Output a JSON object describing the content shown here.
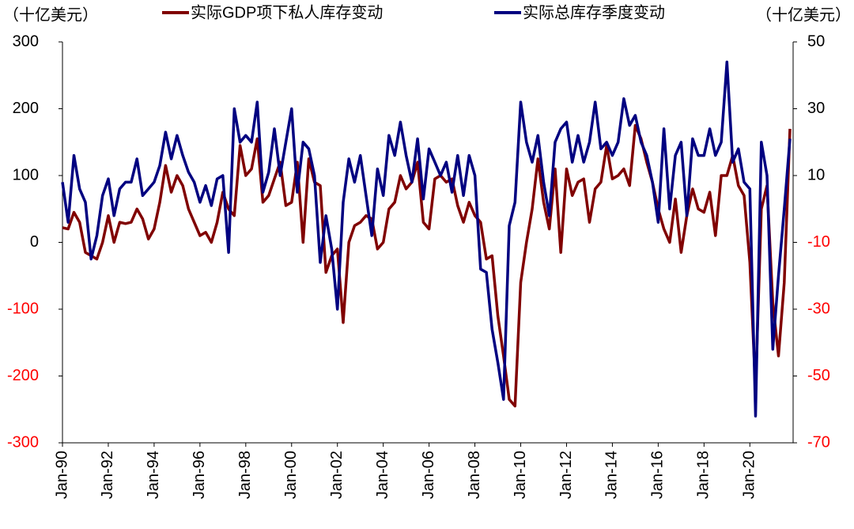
{
  "chart_data": {
    "type": "line",
    "y_label": "（十亿美元）",
    "y2_label": "（十亿美元）",
    "categories": [
      "Jan-90",
      null,
      null,
      null,
      null,
      null,
      null,
      null,
      "Jan-92",
      null,
      null,
      null,
      null,
      null,
      null,
      null,
      "Jan-94",
      null,
      null,
      null,
      null,
      null,
      null,
      null,
      "Jan-96",
      null,
      null,
      null,
      null,
      null,
      null,
      null,
      "Jan-98",
      null,
      null,
      null,
      null,
      null,
      null,
      null,
      "Jan-00",
      null,
      null,
      null,
      null,
      null,
      null,
      null,
      "Jan-02",
      null,
      null,
      null,
      null,
      null,
      null,
      null,
      "Jan-04",
      null,
      null,
      null,
      null,
      null,
      null,
      null,
      "Jan-06",
      null,
      null,
      null,
      null,
      null,
      null,
      null,
      "Jan-08",
      null,
      null,
      null,
      null,
      null,
      null,
      null,
      "Jan-10",
      null,
      null,
      null,
      null,
      null,
      null,
      null,
      "Jan-12",
      null,
      null,
      null,
      null,
      null,
      null,
      null,
      "Jan-14",
      null,
      null,
      null,
      null,
      null,
      null,
      null,
      "Jan-16",
      null,
      null,
      null,
      null,
      null,
      null,
      null,
      "Jan-18",
      null,
      null,
      null,
      null,
      null,
      null,
      null,
      "Jan-20",
      null,
      null,
      null,
      null,
      null,
      null,
      null
    ],
    "series": [
      {
        "name": "实际GDP项下私人库存变动",
        "color": "#800000",
        "axis": "y",
        "values": [
          22,
          20,
          45,
          30,
          -15,
          -20,
          -25,
          0,
          40,
          0,
          30,
          28,
          30,
          50,
          35,
          5,
          20,
          60,
          115,
          75,
          100,
          85,
          50,
          30,
          10,
          15,
          0,
          30,
          75,
          50,
          40,
          145,
          100,
          110,
          155,
          60,
          70,
          95,
          120,
          55,
          60,
          120,
          0,
          125,
          90,
          85,
          -45,
          -20,
          -10,
          -120,
          0,
          25,
          30,
          40,
          35,
          -10,
          0,
          50,
          60,
          100,
          80,
          90,
          120,
          30,
          20,
          95,
          100,
          90,
          95,
          55,
          30,
          60,
          40,
          30,
          -25,
          -20,
          -110,
          -170,
          -235,
          -245,
          -60,
          0,
          50,
          125,
          60,
          20,
          110,
          -15,
          110,
          70,
          90,
          95,
          30,
          80,
          90,
          145,
          95,
          100,
          110,
          85,
          175,
          155,
          120,
          90,
          50,
          20,
          0,
          65,
          -15,
          40,
          80,
          50,
          45,
          75,
          10,
          100,
          100,
          130,
          85,
          70,
          -30,
          -220,
          50,
          85,
          -90,
          -170,
          -60,
          170
        ]
      },
      {
        "name": "实际总库存季度变动",
        "color": "#000080",
        "axis": "y2",
        "values": [
          8,
          -4,
          16,
          6,
          2,
          -15,
          -8,
          4,
          9,
          -2,
          6,
          8,
          8,
          15,
          4,
          6,
          8,
          13,
          23,
          15,
          22,
          16,
          11,
          8,
          2,
          7,
          1,
          9,
          10,
          -13,
          30,
          20,
          22,
          20,
          32,
          5,
          11,
          24,
          10,
          20,
          30,
          5,
          20,
          18,
          10,
          -16,
          -2,
          -12,
          -30,
          2,
          15,
          8,
          16,
          4,
          -8,
          12,
          4,
          22,
          16,
          26,
          16,
          8,
          21,
          3,
          18,
          14,
          10,
          14,
          5,
          16,
          4,
          16,
          10,
          -18,
          -19,
          -36,
          -46,
          -57,
          -5,
          2,
          32,
          20,
          14,
          22,
          8,
          -2,
          20,
          24,
          26,
          14,
          22,
          14,
          20,
          32,
          18,
          20,
          16,
          20,
          33,
          25,
          28,
          20,
          16,
          8,
          -4,
          24,
          0,
          16,
          20,
          -2,
          21,
          16,
          16,
          24,
          16,
          20,
          44,
          14,
          18,
          8,
          6,
          -62,
          20,
          10,
          -42,
          -20,
          0,
          21
        ]
      }
    ],
    "ylim": [
      -300,
      300
    ],
    "yticks": [
      300,
      200,
      100,
      0,
      -100,
      -200,
      -300
    ],
    "y2lim": [
      -70,
      50
    ],
    "y2ticks": [
      50,
      30,
      10,
      -10,
      -30,
      -50,
      -70
    ],
    "negative_tick_color": "#ff0000"
  }
}
